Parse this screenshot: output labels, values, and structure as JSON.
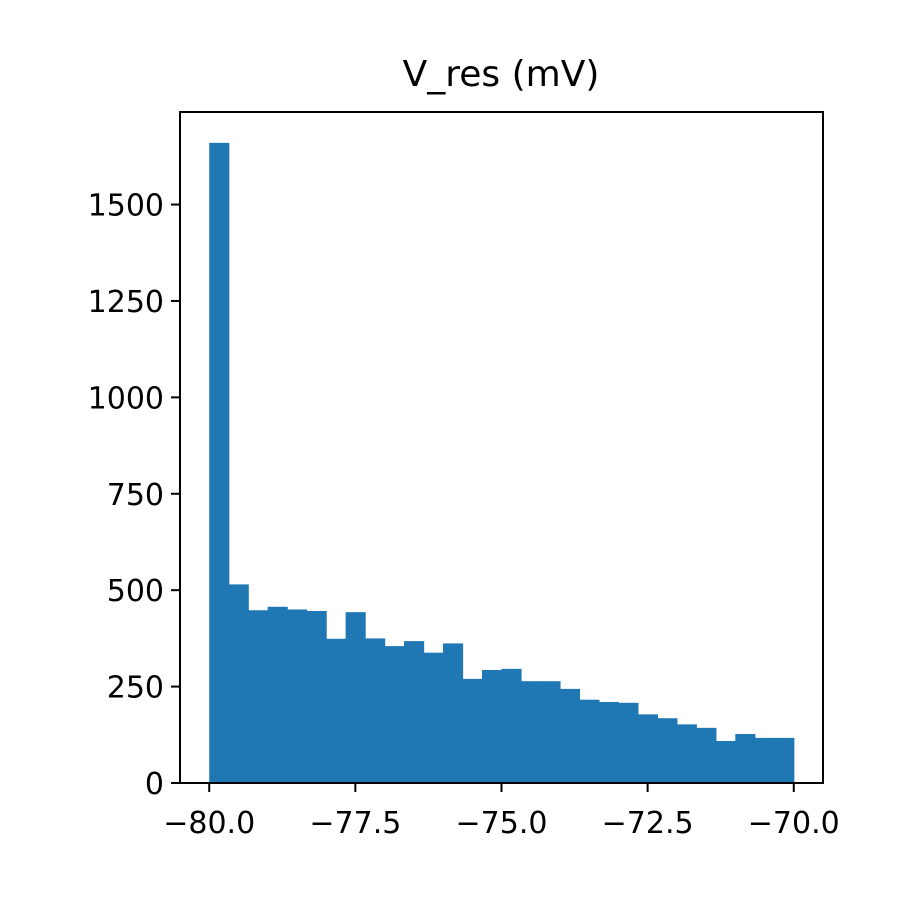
{
  "chart_data": {
    "type": "bar",
    "title": "V_res (mV)",
    "xlabel": "",
    "ylabel": "",
    "bin_edges": [
      -80.0,
      -79.6667,
      -79.3333,
      -79.0,
      -78.6667,
      -78.3333,
      -78.0,
      -77.6667,
      -77.3333,
      -77.0,
      -76.6667,
      -76.3333,
      -76.0,
      -75.6667,
      -75.3333,
      -75.0,
      -74.6667,
      -74.3333,
      -74.0,
      -73.6667,
      -73.3333,
      -73.0,
      -72.6667,
      -72.3333,
      -72.0,
      -71.6667,
      -71.3333,
      -71.0,
      -70.6667,
      -70.3333,
      -70.0
    ],
    "values": [
      1660,
      515,
      448,
      457,
      450,
      446,
      374,
      443,
      375,
      355,
      368,
      338,
      362,
      270,
      293,
      296,
      264,
      264,
      244,
      216,
      210,
      208,
      178,
      168,
      152,
      143,
      109,
      127,
      117,
      117
    ],
    "xlim": [
      -80.5,
      -69.5
    ],
    "ylim": [
      0,
      1740
    ],
    "xticks": [
      -80.0,
      -77.5,
      -75.0,
      -72.5,
      -70.0
    ],
    "xtick_labels": [
      "−80.0",
      "−77.5",
      "−75.0",
      "−72.5",
      "−70.0"
    ],
    "yticks": [
      0,
      250,
      500,
      750,
      1000,
      1250,
      1500
    ],
    "ytick_labels": [
      "0",
      "250",
      "500",
      "750",
      "1000",
      "1250",
      "1500"
    ],
    "bar_color": "#1f77b4",
    "grid": false,
    "legend": "none"
  }
}
